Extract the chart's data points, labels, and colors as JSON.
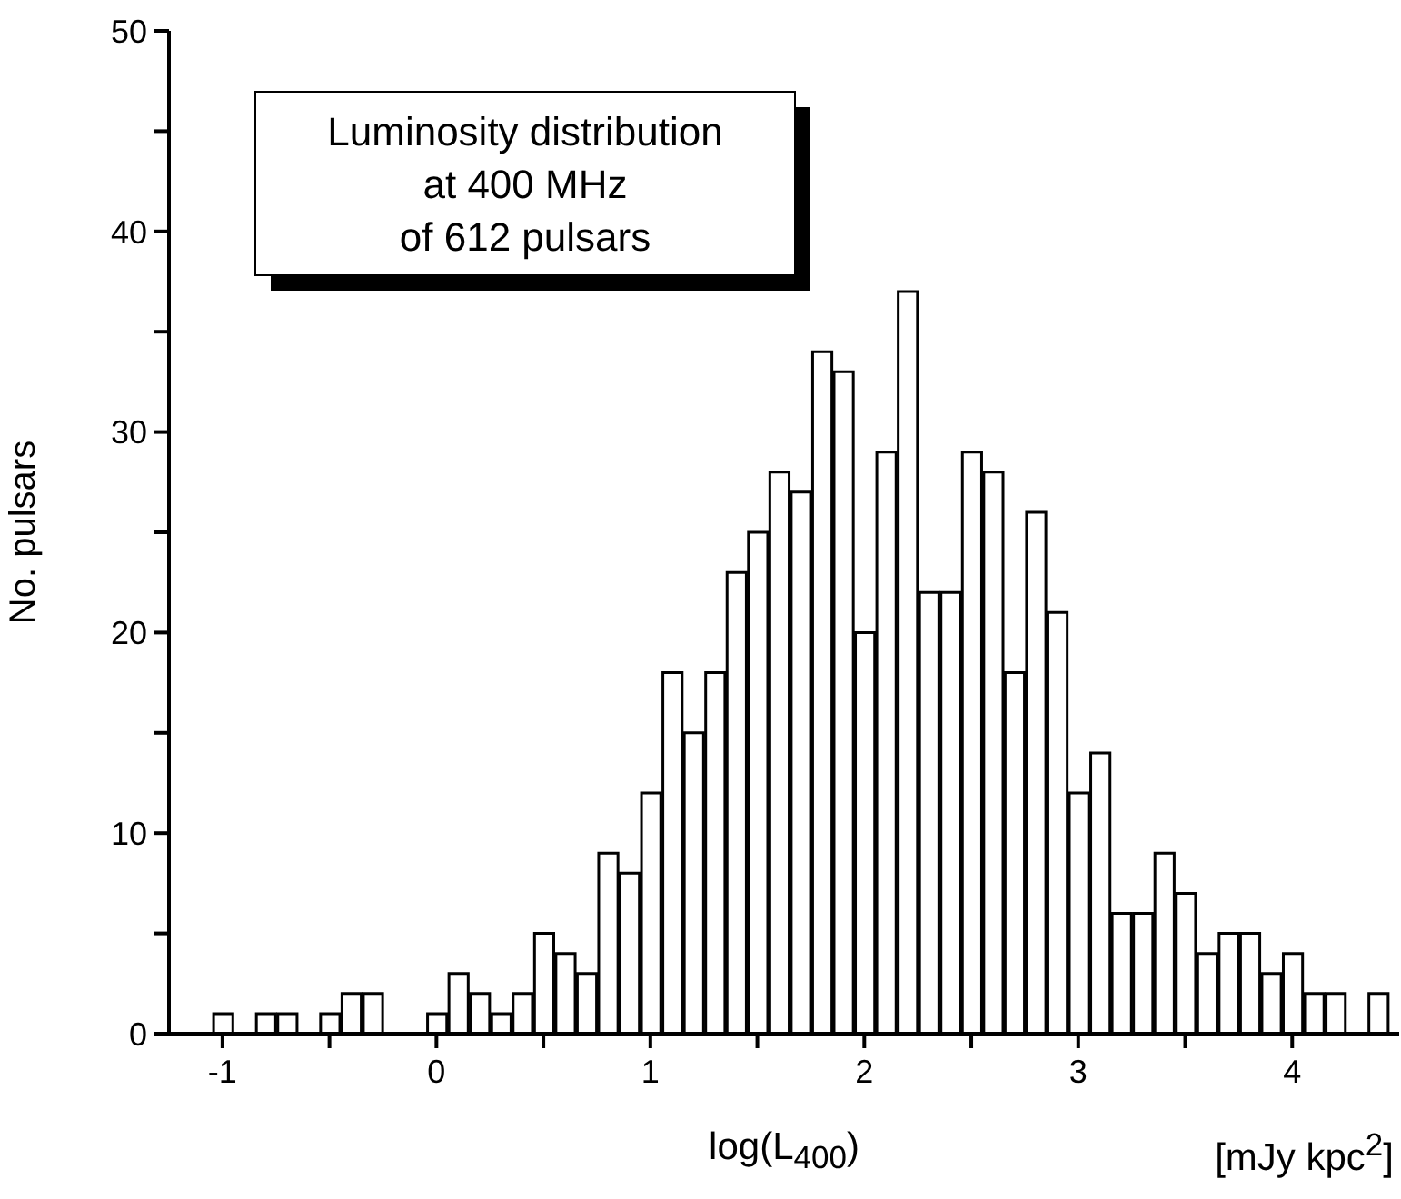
{
  "chart_data": {
    "type": "histogram",
    "title": "Luminosity distribution\nat 400 MHz\nof 612 pulsars",
    "xlabel": "log(L$_{400}$)",
    "ylabel": "No. pulsars",
    "annotations": [
      "[mJy kpc$^{2}$]"
    ],
    "bins": [
      -1.05,
      -0.95,
      -0.85,
      -0.75,
      -0.65,
      -0.55,
      -0.45,
      -0.35,
      -0.25,
      -0.15,
      -0.05,
      0.05,
      0.15,
      0.25,
      0.35,
      0.45,
      0.55,
      0.65,
      0.75,
      0.85,
      0.95,
      1.05,
      1.15,
      1.25,
      1.35,
      1.45,
      1.55,
      1.65,
      1.75,
      1.85,
      1.95,
      2.05,
      2.15,
      2.25,
      2.35,
      2.45,
      2.55,
      2.65,
      2.75,
      2.85,
      2.95,
      3.05,
      3.15,
      3.25,
      3.35,
      3.45,
      3.55,
      3.65,
      3.75,
      3.85,
      3.95,
      4.05,
      4.15,
      4.25,
      4.35,
      4.45
    ],
    "values": [
      1,
      0,
      1,
      1,
      0,
      1,
      2,
      2,
      0,
      0,
      1,
      3,
      2,
      1,
      2,
      5,
      4,
      3,
      9,
      8,
      12,
      18,
      15,
      18,
      23,
      25,
      28,
      27,
      34,
      33,
      20,
      29,
      37,
      22,
      22,
      29,
      28,
      18,
      26,
      21,
      12,
      14,
      6,
      6,
      9,
      7,
      4,
      5,
      5,
      3,
      4,
      2,
      2,
      0,
      2
    ],
    "color": "#ffffff",
    "xlim": [
      -1.25,
      4.5
    ],
    "xticks": [
      {
        "value": -1,
        "label": "-1"
      },
      {
        "value": -0.5,
        "label": null
      },
      0,
      {
        "value": 0.5,
        "label": null
      },
      1,
      {
        "value": 1.5,
        "label": null
      },
      2,
      {
        "value": 2.5,
        "label": null
      },
      3,
      {
        "value": 3.5,
        "label": null
      },
      4
    ],
    "ylim": [
      0,
      50
    ],
    "yticks": [
      0,
      {
        "value": 5,
        "label": null
      },
      10,
      {
        "value": 15,
        "label": null
      },
      20,
      {
        "value": 25,
        "label": null
      },
      30,
      {
        "value": 35,
        "label": null
      },
      40,
      {
        "value": 45,
        "label": null
      },
      50
    ]
  }
}
